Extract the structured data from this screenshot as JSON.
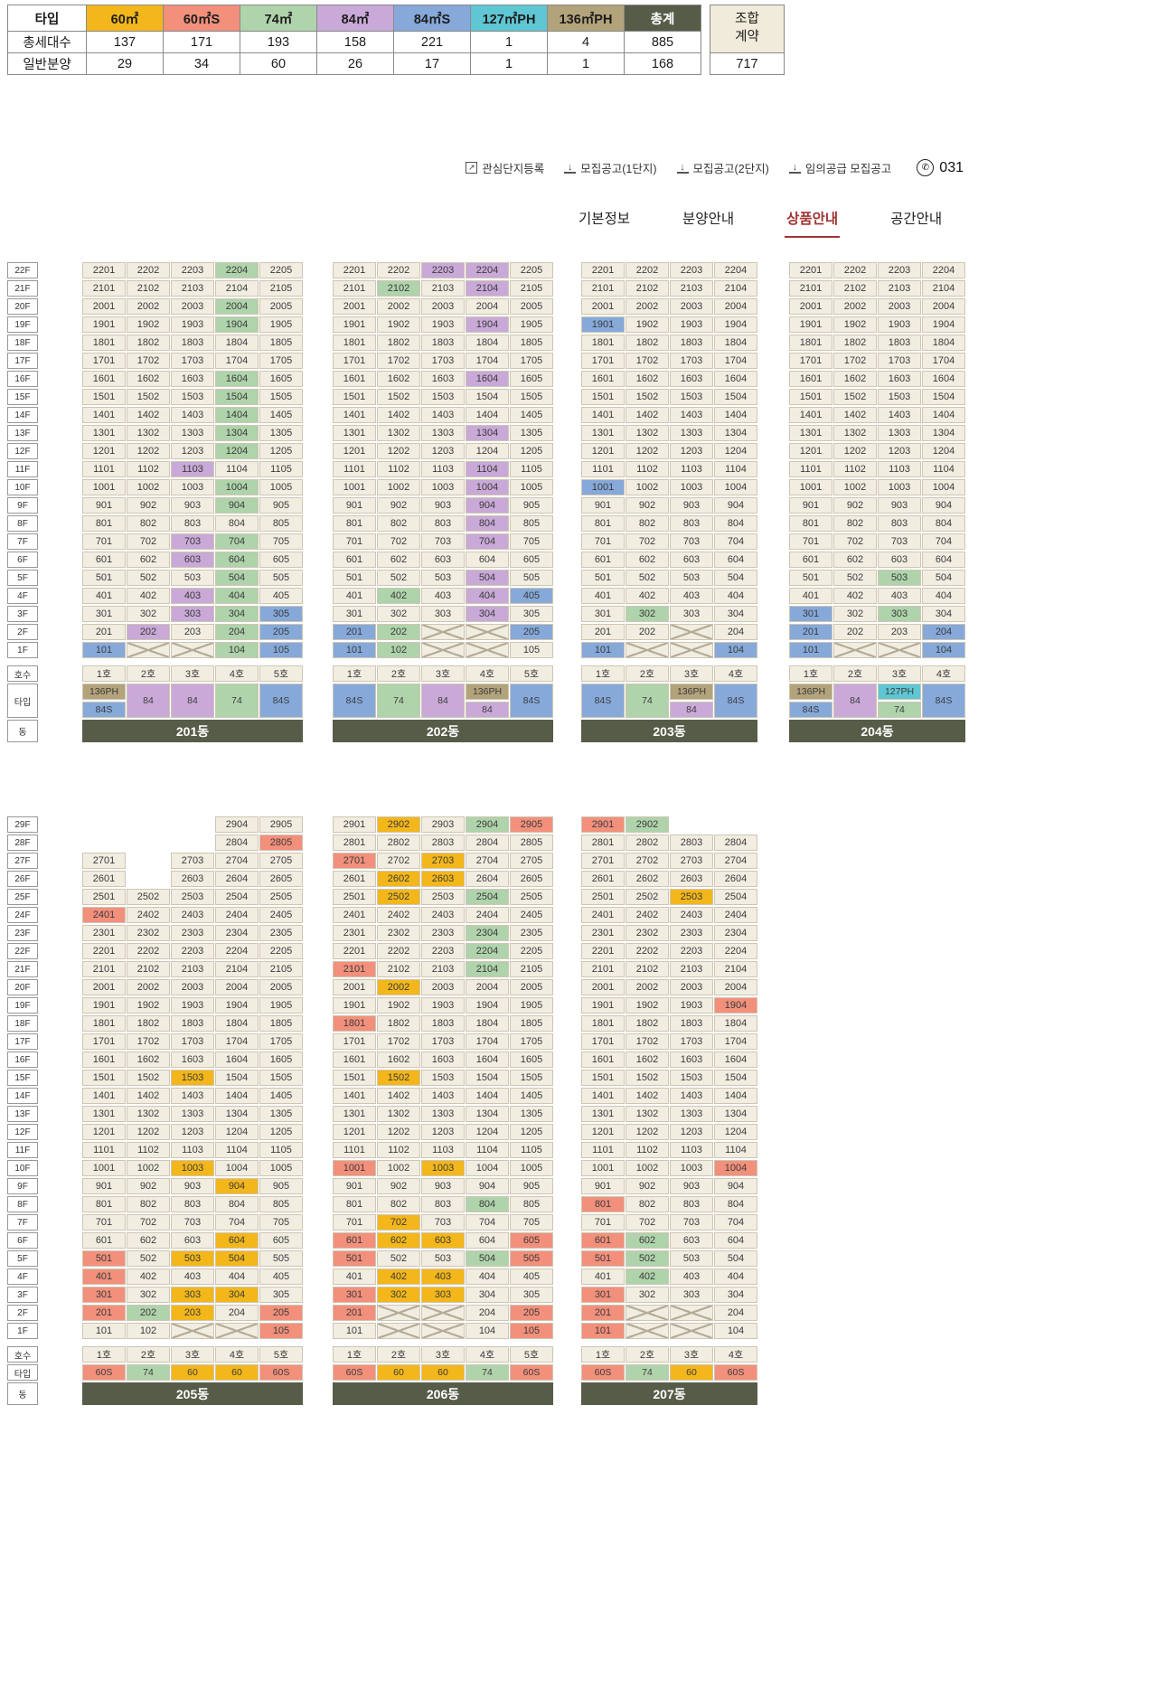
{
  "type_colors": {
    "60": "#F3B71B",
    "60S": "#F2907C",
    "74": "#AFD3AB",
    "84": "#C9A9D7",
    "84S": "#86A9DA",
    "127PH": "#5FC6D4",
    "136PH": "#B3A37B",
    "total_bg": "#575C48",
    "plain": "#F2EDE1"
  },
  "summary": {
    "col_header": "타입",
    "types": [
      {
        "key": "60",
        "label": "60㎡"
      },
      {
        "key": "60S",
        "label": "60㎡S"
      },
      {
        "key": "74",
        "label": "74㎡"
      },
      {
        "key": "84",
        "label": "84㎡"
      },
      {
        "key": "84S",
        "label": "84㎡S"
      },
      {
        "key": "127PH",
        "label": "127㎡PH"
      },
      {
        "key": "136PH",
        "label": "136㎡PH"
      },
      {
        "key": "total",
        "label": "총계"
      }
    ],
    "rows": [
      {
        "label": "총세대수",
        "values": [
          "137",
          "171",
          "193",
          "158",
          "221",
          "1",
          "4",
          "885"
        ]
      },
      {
        "label": "일반분양",
        "values": [
          "29",
          "34",
          "60",
          "26",
          "17",
          "1",
          "1",
          "168"
        ]
      }
    ],
    "union_label_lines": [
      "조합",
      "계약"
    ],
    "union_value": "717"
  },
  "links": [
    {
      "label": "관심단지등록",
      "icon": "external"
    },
    {
      "label": "모집공고(1단지)",
      "icon": "download"
    },
    {
      "label": "모집공고(2단지)",
      "icon": "download"
    },
    {
      "label": "임의공급 모집공고",
      "icon": "download"
    }
  ],
  "phone": "031",
  "tabs": [
    {
      "label": "기본정보",
      "active": false
    },
    {
      "label": "분양안내",
      "active": false
    },
    {
      "label": "상품안내",
      "active": true
    },
    {
      "label": "공간안내",
      "active": false
    }
  ],
  "floor_labels_top": [
    "22F",
    "21F",
    "20F",
    "19F",
    "18F",
    "17F",
    "16F",
    "15F",
    "14F",
    "13F",
    "12F",
    "11F",
    "10F",
    "9F",
    "8F",
    "7F",
    "6F",
    "5F",
    "4F",
    "3F",
    "2F",
    "1F"
  ],
  "floor_labels_bottom": [
    "29F",
    "28F",
    "27F",
    "26F",
    "25F",
    "24F",
    "23F",
    "22F",
    "21F",
    "20F",
    "19F",
    "18F",
    "17F",
    "16F",
    "15F",
    "14F",
    "13F",
    "12F",
    "11F",
    "10F",
    "9F",
    "8F",
    "7F",
    "6F",
    "5F",
    "4F",
    "3F",
    "2F",
    "1F"
  ],
  "row_labels": {
    "unit": "호수",
    "type": "타입",
    "dong": "동"
  },
  "buildings": [
    {
      "name": "201동",
      "units": [
        "1호",
        "2호",
        "3호",
        "4호",
        "5호"
      ],
      "types": [
        [
          "136PH",
          "84S"
        ],
        [
          "84"
        ],
        [
          "84"
        ],
        [
          "74"
        ],
        [
          "84S"
        ]
      ],
      "cells": "2201,2202,2203,2204,2205;2101,2102,2103,2104,2105;2001,2002,2003,2004,2005;1901,1902,1903,1904,1905;1801,1802,1803,1804,1805;1701,1702,1703,1704,1705;1601,1602,1603,1604,1605;1501,1502,1503,1504,1505;1401,1402,1403,1404,1405;1301,1302,1303,1304,1305;1201,1202,1203,1204,1205;1101,1102,1103,1104,1105;1001,1002,1003,1004,1005;901,902,903,904,905;801,802,803,804,805;701,702,703,704,705;601,602,603,604,605;501,502,503,504,505;401,402,403,404,405;301,302,303,304,305;201,202,203,204,205;101,X,X,104,105",
      "hl": {
        "2204": "74",
        "2004": "74",
        "1904": "74",
        "1604": "74",
        "1504": "74",
        "1404": "74",
        "1304": "74",
        "1204": "74",
        "1103": "84",
        "1004": "74",
        "904": "74",
        "703": "84",
        "704": "74",
        "603": "84",
        "604": "74",
        "504": "74",
        "403": "84",
        "404": "74",
        "303": "84",
        "304": "74",
        "305": "84S",
        "202": "84",
        "204": "74",
        "205": "84S",
        "101": "84S",
        "104": "74",
        "105": "84S"
      }
    },
    {
      "name": "202동",
      "units": [
        "1호",
        "2호",
        "3호",
        "4호",
        "5호"
      ],
      "types": [
        [
          "84S"
        ],
        [
          "74"
        ],
        [
          "84"
        ],
        [
          "136PH",
          "84"
        ],
        [
          "84S"
        ]
      ],
      "cells": "2201,2202,2203,2204,2205;2101,2102,2103,2104,2105;2001,2002,2003,2004,2005;1901,1902,1903,1904,1905;1801,1802,1803,1804,1805;1701,1702,1703,1704,1705;1601,1602,1603,1604,1605;1501,1502,1503,1504,1505;1401,1402,1403,1404,1405;1301,1302,1303,1304,1305;1201,1202,1203,1204,1205;1101,1102,1103,1104,1105;1001,1002,1003,1004,1005;901,902,903,904,905;801,802,803,804,805;701,702,703,704,705;601,602,603,604,605;501,502,503,504,505;401,402,403,404,405;301,302,303,304,305;201,202,X,X,205;101,102,X,X,105",
      "hl": {
        "2203": "84",
        "2204": "84",
        "2102": "74",
        "2104": "84",
        "1904": "84",
        "1604": "84",
        "1304": "84",
        "1104": "84",
        "1004": "84",
        "904": "84",
        "804": "84",
        "704": "84",
        "504": "84",
        "402": "74",
        "404": "84",
        "405": "84S",
        "304": "84",
        "201": "84S",
        "202": "74",
        "205": "84S",
        "101": "84S",
        "102": "74"
      }
    },
    {
      "name": "203동",
      "units": [
        "1호",
        "2호",
        "3호",
        "4호"
      ],
      "types": [
        [
          "84S"
        ],
        [
          "74"
        ],
        [
          "136PH",
          "84"
        ],
        [
          "84S"
        ]
      ],
      "cells": "2201,2202,2203,2204;2101,2102,2103,2104;2001,2002,2003,2004;1901,1902,1903,1904;1801,1802,1803,1804;1701,1702,1703,1704;1601,1602,1603,1604;1501,1502,1503,1504;1401,1402,1403,1404;1301,1302,1303,1304;1201,1202,1203,1204;1101,1102,1103,1104;1001,1002,1003,1004;901,902,903,904;801,802,803,804;701,702,703,704;601,602,603,604;501,502,503,504;401,402,403,404;301,302,303,304;201,202,X,204;101,X,X,104",
      "hl": {
        "1901": "84S",
        "1001": "84S",
        "302": "74",
        "101": "84S",
        "104": "84S"
      }
    },
    {
      "name": "204동",
      "units": [
        "1호",
        "2호",
        "3호",
        "4호"
      ],
      "types": [
        [
          "136PH",
          "84S"
        ],
        [
          "84"
        ],
        [
          "127PH",
          "74"
        ],
        [
          "84S"
        ]
      ],
      "cells": "2201,2202,2203,2204;2101,2102,2103,2104;2001,2002,2003,2004;1901,1902,1903,1904;1801,1802,1803,1804;1701,1702,1703,1704;1601,1602,1603,1604;1501,1502,1503,1504;1401,1402,1403,1404;1301,1302,1303,1304;1201,1202,1203,1204;1101,1102,1103,1104;1001,1002,1003,1004;901,902,903,904;801,802,803,804;701,702,703,704;601,602,603,604;501,502,503,504;401,402,403,404;301,302,303,304;201,202,203,204;101,X,X,104",
      "hl": {
        "503": "74",
        "301": "84S",
        "303": "74",
        "201": "84S",
        "204": "84S",
        "101": "84S",
        "104": "84S"
      }
    },
    {
      "name": "205동",
      "units": [
        "1호",
        "2호",
        "3호",
        "4호",
        "5호"
      ],
      "types": [
        [
          "60S"
        ],
        [
          "74"
        ],
        [
          "60"
        ],
        [
          "60"
        ],
        [
          "60S"
        ]
      ],
      "cells": ",,,2904,2905;,,,2804,2805;2701,,2703,2704,2705;2601,,2603,2604,2605;2501,2502,2503,2504,2505;2401,2402,2403,2404,2405;2301,2302,2303,2304,2305;2201,2202,2203,2204,2205;2101,2102,2103,2104,2105;2001,2002,2003,2004,2005;1901,1902,1903,1904,1905;1801,1802,1803,1804,1805;1701,1702,1703,1704,1705;1601,1602,1603,1604,1605;1501,1502,1503,1504,1505;1401,1402,1403,1404,1405;1301,1302,1303,1304,1305;1201,1202,1203,1204,1205;1101,1102,1103,1104,1105;1001,1002,1003,1004,1005;901,902,903,904,905;801,802,803,804,805;701,702,703,704,705;601,602,603,604,605;501,502,503,504,505;401,402,403,404,405;301,302,303,304,305;201,202,203,204,205;101,102,X,X,105",
      "hl": {
        "2805": "60S",
        "2401": "60S",
        "1503": "60",
        "1003": "60",
        "904": "60",
        "604": "60",
        "501": "60S",
        "503": "60",
        "504": "60",
        "401": "60S",
        "301": "60S",
        "303": "60",
        "304": "60",
        "201": "60S",
        "202": "74",
        "203": "60",
        "205": "60S",
        "105": "60S"
      }
    },
    {
      "name": "206동",
      "units": [
        "1호",
        "2호",
        "3호",
        "4호",
        "5호"
      ],
      "types": [
        [
          "60S"
        ],
        [
          "60"
        ],
        [
          "60"
        ],
        [
          "74"
        ],
        [
          "60S"
        ]
      ],
      "cells": "2901,2902,2903,2904,2905;2801,2802,2803,2804,2805;2701,2702,2703,2704,2705;2601,2602,2603,2604,2605;2501,2502,2503,2504,2505;2401,2402,2403,2404,2405;2301,2302,2303,2304,2305;2201,2202,2203,2204,2205;2101,2102,2103,2104,2105;2001,2002,2003,2004,2005;1901,1902,1903,1904,1905;1801,1802,1803,1804,1805;1701,1702,1703,1704,1705;1601,1602,1603,1604,1605;1501,1502,1503,1504,1505;1401,1402,1403,1404,1405;1301,1302,1303,1304,1305;1201,1202,1203,1204,1205;1101,1102,1103,1104,1105;1001,1002,1003,1004,1005;901,902,903,904,905;801,802,803,804,805;701,702,703,704,705;601,602,603,604,605;501,502,503,504,505;401,402,403,404,405;301,302,303,304,305;201,X,X,204,205;101,X,X,104,105",
      "hl": {
        "2902": "60",
        "2904": "74",
        "2905": "60S",
        "2701": "60S",
        "2703": "60",
        "2602": "60",
        "2603": "60",
        "2502": "60",
        "2504": "74",
        "2304": "74",
        "2204": "74",
        "2101": "60S",
        "2104": "74",
        "2002": "60",
        "1801": "60S",
        "1502": "60",
        "1001": "60S",
        "1003": "60",
        "804": "74",
        "702": "60",
        "601": "60S",
        "602": "60",
        "603": "60",
        "605": "60S",
        "501": "60S",
        "504": "74",
        "505": "60S",
        "402": "60",
        "403": "60",
        "301": "60S",
        "302": "60",
        "303": "60",
        "201": "60S",
        "205": "60S",
        "105": "60S"
      }
    },
    {
      "name": "207동",
      "units": [
        "1호",
        "2호",
        "3호",
        "4호"
      ],
      "types": [
        [
          "60S"
        ],
        [
          "74"
        ],
        [
          "60"
        ],
        [
          "60S"
        ]
      ],
      "cells": "2901,2902,,;2801,2802,2803,2804;2701,2702,2703,2704;2601,2602,2603,2604;2501,2502,2503,2504;2401,2402,2403,2404;2301,2302,2303,2304;2201,2202,2203,2204;2101,2102,2103,2104;2001,2002,2003,2004;1901,1902,1903,1904;1801,1802,1803,1804;1701,1702,1703,1704;1601,1602,1603,1604;1501,1502,1503,1504;1401,1402,1403,1404;1301,1302,1303,1304;1201,1202,1203,1204;1101,1102,1103,1104;1001,1002,1003,1004;901,902,903,904;801,802,803,804;701,702,703,704;601,602,603,604;501,502,503,504;401,402,403,404;301,302,303,304;201,X,X,204;101,X,X,104",
      "hl": {
        "2901": "60S",
        "2902": "74",
        "2503": "60",
        "1904": "60S",
        "1004": "60S",
        "801": "60S",
        "601": "60S",
        "602": "74",
        "501": "60S",
        "502": "74",
        "402": "74",
        "301": "60S",
        "201": "60S",
        "101": "60S"
      }
    }
  ]
}
